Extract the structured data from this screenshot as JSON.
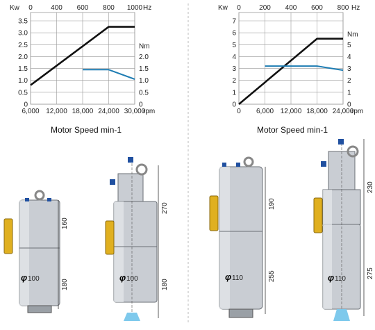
{
  "chart_data": [
    {
      "type": "line",
      "title": "Motor Speed min-1",
      "x": [
        6000,
        12000,
        18000,
        24000,
        30000
      ],
      "x_ticks": [
        "6,000",
        "12,000",
        "18,000",
        "24,000",
        "30,000"
      ],
      "x_unit": "rpm",
      "xlim": [
        6000,
        30000
      ],
      "top_ticks": [
        "0",
        "400",
        "600",
        "800",
        "1000"
      ],
      "top_unit": "Hz",
      "left_unit": "Kw",
      "left_ticks": [
        "0",
        "0.5",
        "1.0",
        "1.5",
        "2.0",
        "2.5",
        "3.0",
        "3.5"
      ],
      "ylim_left": [
        0,
        3.5
      ],
      "right_unit": "Nm",
      "right_ticks": [
        "0",
        "0.5",
        "1.0",
        "1.5",
        "2.0"
      ],
      "ylim_right": [
        0,
        3.5
      ],
      "grid": true,
      "series": [
        {
          "axis": "left",
          "color": "#111111",
          "points": [
            [
              6000,
              0.8
            ],
            [
              24000,
              3.25
            ],
            [
              30000,
              3.25
            ]
          ]
        },
        {
          "axis": "right",
          "color": "#1f7db3",
          "points": [
            [
              18000,
              1.45
            ],
            [
              24000,
              1.45
            ],
            [
              30000,
              1.05
            ]
          ]
        }
      ]
    },
    {
      "type": "line",
      "title": "Motor Speed min-1",
      "x": [
        0,
        6000,
        12000,
        18000,
        24000
      ],
      "x_ticks": [
        "0",
        "6,000",
        "12,000",
        "18,000",
        "24,000"
      ],
      "x_unit": "rpm",
      "xlim": [
        0,
        24000
      ],
      "top_ticks": [
        "0",
        "200",
        "400",
        "600",
        "800"
      ],
      "top_unit": "Hz",
      "left_unit": "Kw",
      "left_ticks": [
        "0",
        "1",
        "2",
        "3",
        "4",
        "5",
        "6",
        "7"
      ],
      "ylim_left": [
        0,
        7
      ],
      "right_unit": "Nm",
      "right_ticks": [
        "0",
        "1",
        "2",
        "3",
        "4",
        "5"
      ],
      "ylim_right": [
        0,
        7
      ],
      "grid": true,
      "series": [
        {
          "axis": "left",
          "color": "#111111",
          "points": [
            [
              0,
              0
            ],
            [
              18000,
              5.5
            ],
            [
              24000,
              5.5
            ]
          ]
        },
        {
          "axis": "right",
          "color": "#1f7db3",
          "points": [
            [
              6000,
              3.2
            ],
            [
              18000,
              3.2
            ],
            [
              24000,
              2.85
            ]
          ]
        }
      ]
    }
  ],
  "motors": [
    {
      "dia": "100",
      "dims": [
        "160",
        "180"
      ]
    },
    {
      "dia": "100",
      "dims": [
        "270",
        "180"
      ]
    },
    {
      "dia": "110",
      "dims": [
        "190",
        "255"
      ]
    },
    {
      "dia": "110",
      "dims": [
        "230",
        "275"
      ]
    }
  ],
  "colors": {
    "grid": "#999999",
    "divider": "#bbbbbb",
    "body": "#c9cdd3",
    "brass": "#e0b020",
    "blue": "#2050a0"
  },
  "icons": [
    "eye-bolt-icon",
    "blue-connector-icon",
    "brass-fitting-icon",
    "collet-icon",
    "coolant-spray-icon"
  ]
}
